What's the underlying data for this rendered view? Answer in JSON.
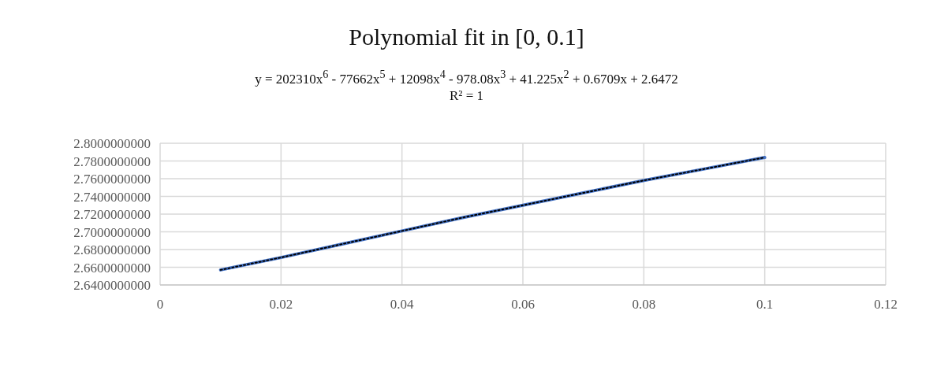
{
  "chart_data": {
    "type": "line",
    "title": "Polynomial  fit in [0, 0.1]",
    "annotations": [
      "y = 202310x$^{6}$  - 77662x$^{5}$  + 12098x$^{4}$  - 978.08x$^{3}$  + 41.225x$^{2}$ + 0.6709x + 2.6472",
      "R² = 1"
    ],
    "x": [
      0.01,
      0.02,
      0.03,
      0.04,
      0.05,
      0.06,
      0.07,
      0.08,
      0.09,
      0.1
    ],
    "series": [
      {
        "color": "#4472c4",
        "values": [
          2.657,
          2.671,
          2.686,
          2.701,
          2.716,
          2.73,
          2.744,
          2.758,
          2.771,
          2.784
        ],
        "line_style": "solid"
      },
      {
        "type": "line",
        "color": "#000000",
        "x": [
          0.01,
          0.02,
          0.03,
          0.04,
          0.05,
          0.06,
          0.07,
          0.08,
          0.09,
          0.1
        ],
        "values": [
          2.657,
          2.671,
          2.686,
          2.701,
          2.716,
          2.73,
          2.744,
          2.758,
          2.771,
          2.784
        ],
        "line_style": "dotted"
      }
    ],
    "xlim": [
      0,
      0.12
    ],
    "xticks": [
      0,
      0.02,
      0.04,
      0.06,
      0.08,
      0.1,
      0.12
    ],
    "ylim": [
      2.64,
      2.8
    ],
    "yticks": [
      {
        "value": 2.64,
        "label": "2.6400000000"
      },
      {
        "value": 2.66,
        "label": "2.6600000000"
      },
      {
        "value": 2.68,
        "label": "2.6800000000"
      },
      {
        "value": 2.7,
        "label": "2.7000000000"
      },
      {
        "value": 2.72,
        "label": "2.7200000000"
      },
      {
        "value": 2.74,
        "label": "2.7400000000"
      },
      {
        "value": 2.76,
        "label": "2.7600000000"
      },
      {
        "value": 2.78,
        "label": "2.7800000000"
      },
      {
        "value": 2.8,
        "label": "2.8000000000"
      }
    ],
    "grid": true,
    "legend": false,
    "marker": "none"
  }
}
